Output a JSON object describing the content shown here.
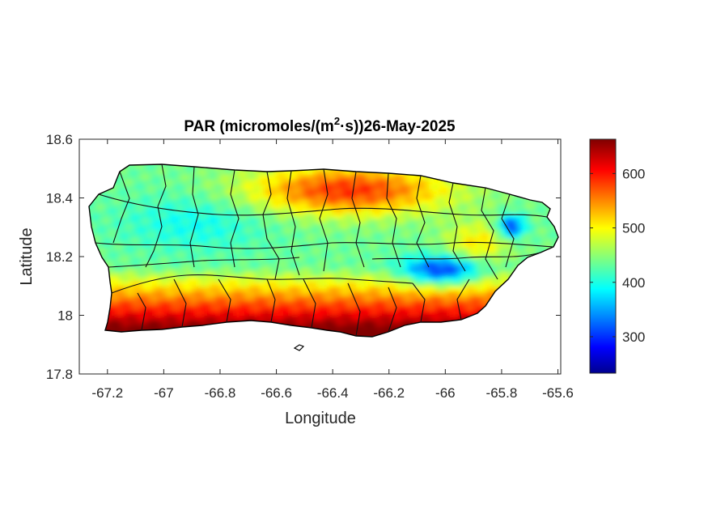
{
  "chart_data": {
    "type": "heatmap",
    "title": "PAR (micromoles/(m",
    "title_sup": "2",
    "title_tail": "·s))26-May-2025",
    "xlabel": "Longitude",
    "ylabel": "Latitude",
    "xlim": [
      -67.3,
      -65.59
    ],
    "ylim": [
      17.8,
      18.6
    ],
    "xticks": [
      -67.2,
      -67,
      -66.8,
      -66.6,
      -66.4,
      -66.2,
      -66,
      -65.8,
      -65.6
    ],
    "xtick_labels": [
      "-67.2",
      "-67",
      "-66.8",
      "-66.6",
      "-66.4",
      "-66.2",
      "-66",
      "-65.8",
      "-65.6"
    ],
    "yticks": [
      17.8,
      18,
      18.2,
      18.4,
      18.6
    ],
    "ytick_labels": [
      "17.8",
      "18",
      "18.2",
      "18.4",
      "18.6"
    ],
    "colorbar": {
      "colormap": "jet",
      "range": [
        233,
        663
      ],
      "ticks": [
        300,
        400,
        500,
        600
      ],
      "tick_labels": [
        "300",
        "400",
        "500",
        "600"
      ]
    },
    "field_estimate": {
      "description_hint": "south coast highest, interior/west lower, east-central minimum",
      "south_coast": 650,
      "north_central": 590,
      "west_interior": 420,
      "east_central_min": 300,
      "northeast_min": 295
    },
    "grid": false,
    "colors": {
      "axis": "#262626",
      "outline": "#000000"
    }
  }
}
